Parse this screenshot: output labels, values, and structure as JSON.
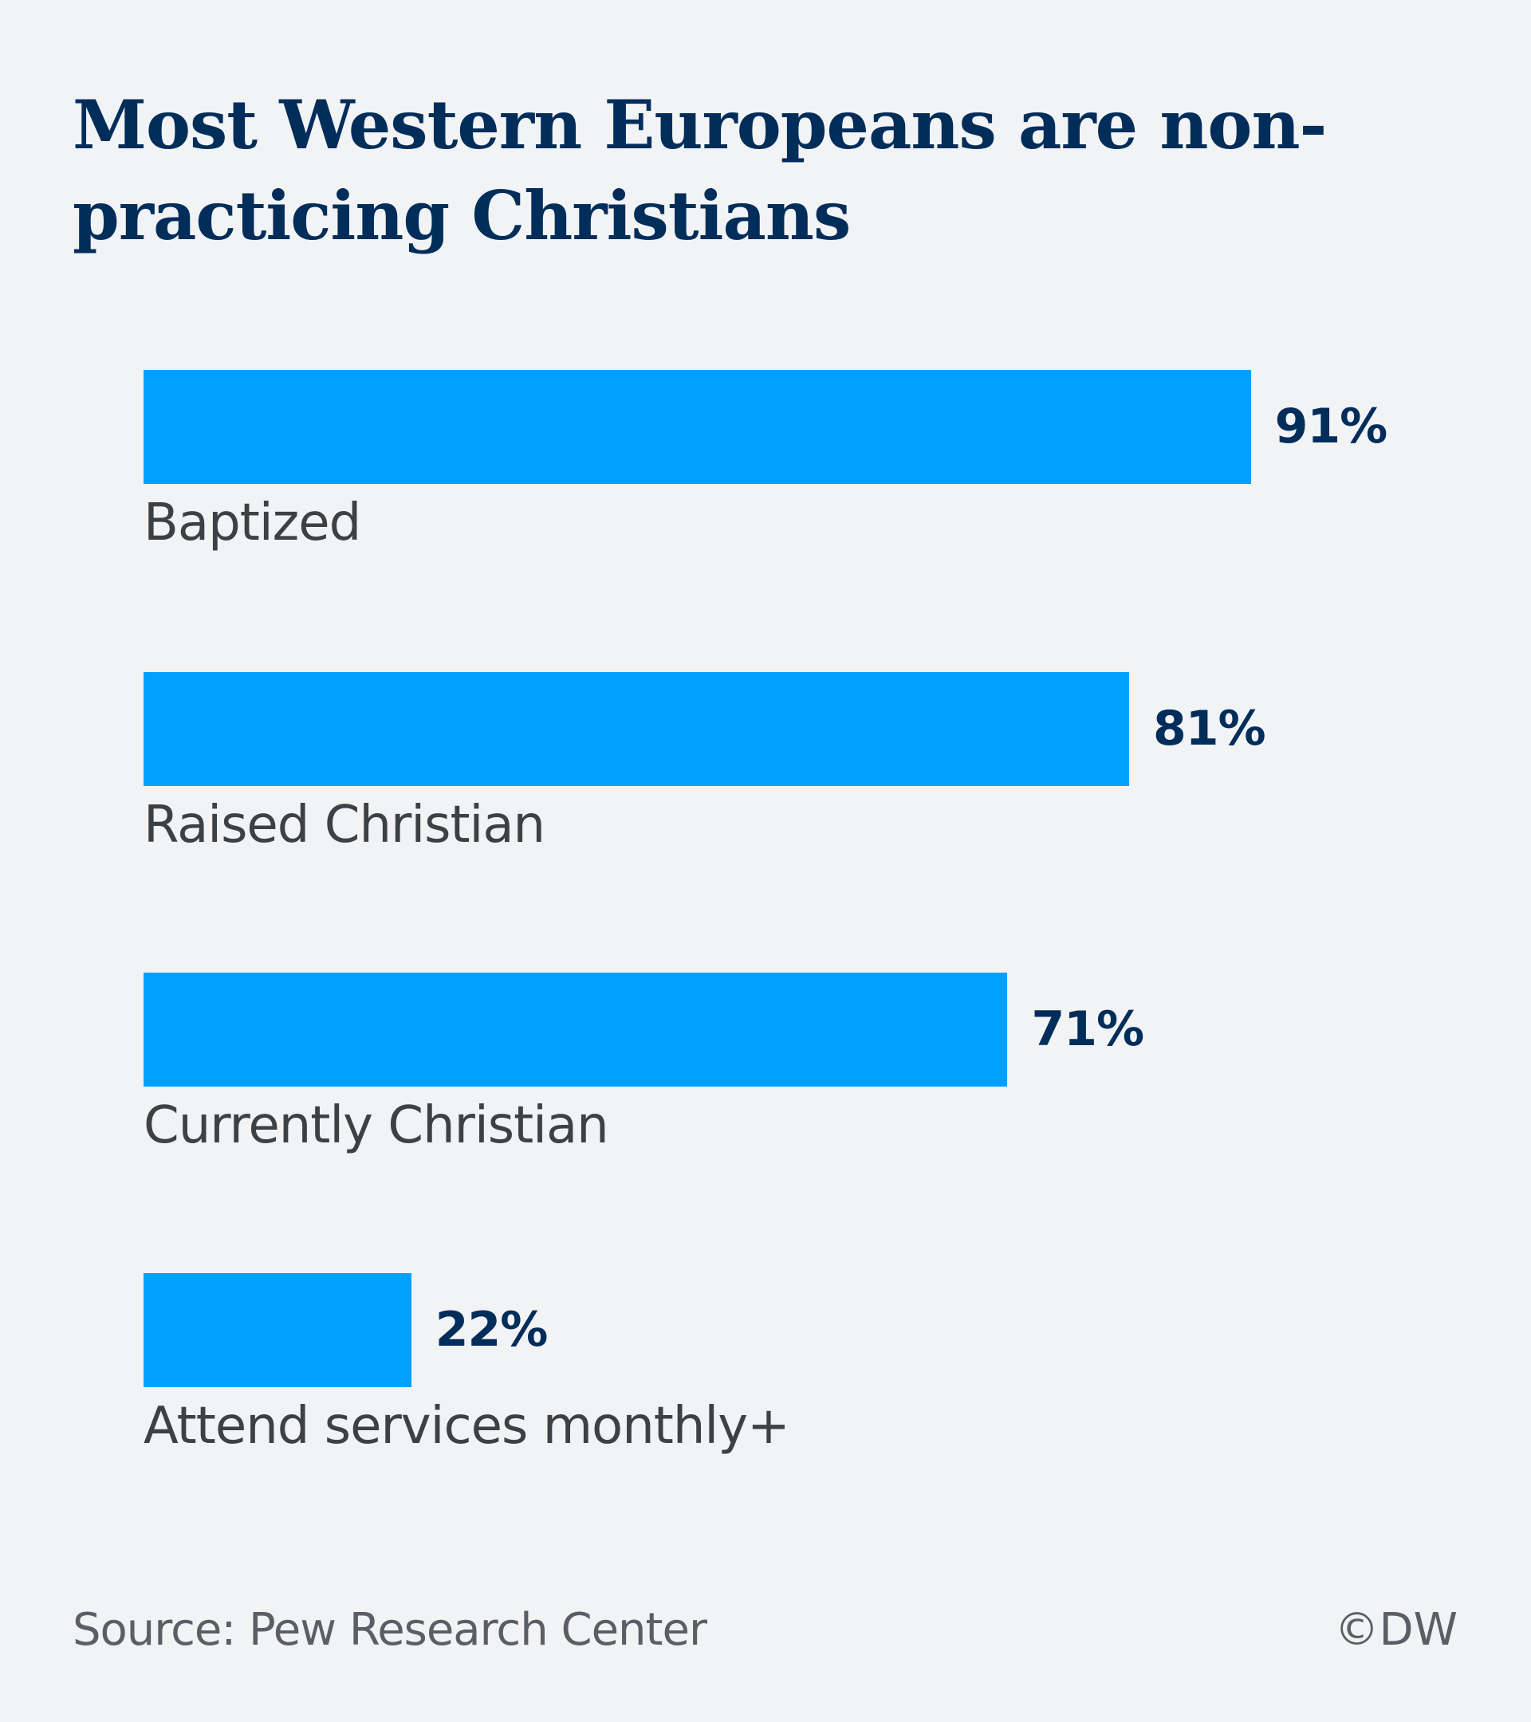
{
  "chart_data": {
    "type": "bar",
    "orientation": "horizontal",
    "title": "Most Western Europeans are non-practicing Christians",
    "categories": [
      "Baptized",
      "Raised Christian",
      "Currently Christian",
      "Attend services monthly+"
    ],
    "values": [
      91,
      81,
      71,
      22
    ],
    "value_labels": [
      "91%",
      "81%",
      "71%",
      "22%"
    ],
    "unit": "%",
    "xlim": [
      0,
      100
    ],
    "grid": false,
    "bar_color": "#00a0ff",
    "source": "Source: Pew Research Center",
    "credit": "©DW"
  }
}
